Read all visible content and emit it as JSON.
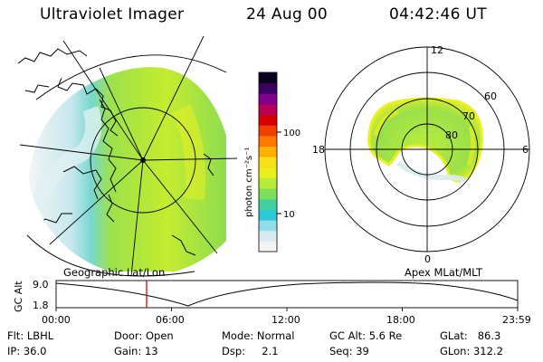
{
  "header": {
    "instrument": "Ultraviolet Imager",
    "date": "24 Aug 00",
    "time": "04:42:46 UT"
  },
  "geo_panel": {
    "label": "Geographic Lat/Lon"
  },
  "apex_panel": {
    "label": "Apex MLat/MLT",
    "mlt_labels": [
      "12",
      "18",
      "6",
      "0"
    ],
    "lat_labels": [
      "60",
      "70",
      "80"
    ]
  },
  "colorbar": {
    "unit": "photon cm⁻²s⁻¹",
    "ticks": [
      "100",
      "10"
    ],
    "colors": [
      "#f4f4f4",
      "#d8ecf0",
      "#90dce8",
      "#30c8d8",
      "#40d0a0",
      "#7ee05a",
      "#b8ec3c",
      "#e8f020",
      "#f8e018",
      "#ffb000",
      "#ff7800",
      "#f04000",
      "#d80000",
      "#b8005a",
      "#80008c",
      "#3a0064",
      "#0a0020"
    ]
  },
  "timeline": {
    "axis_label": "GC Alt",
    "y_ticks": [
      "9.0",
      "1.8"
    ],
    "x_ticks": [
      "00:00",
      "06:00",
      "12:00",
      "18:00",
      "23:59"
    ],
    "current_time_fraction": 0.196,
    "marker_color": "#e00000"
  },
  "info": {
    "row1": {
      "filter": "Flt: LBHL",
      "door": "Door: Open",
      "mode": "Mode: Normal",
      "gc_alt": "GC Alt: 5.6 Re",
      "glat": "GLat:   86.3"
    },
    "row2": {
      "ip": "IP: 36.0",
      "gain": "Gain: 13",
      "dsp": "Dsp:     2.1",
      "seq": "Seq: 39",
      "glon": "GLon: 312.2"
    }
  }
}
